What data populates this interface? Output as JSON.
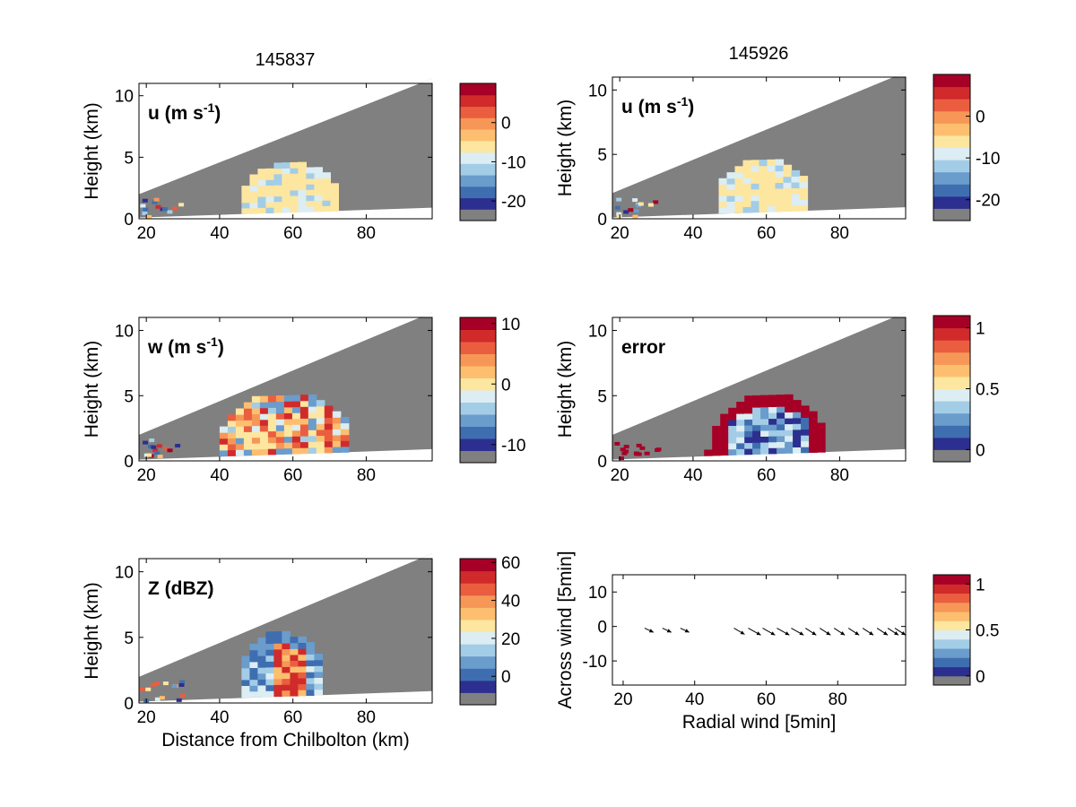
{
  "figure": {
    "columns": [
      {
        "title": "145837"
      },
      {
        "title": "145926"
      }
    ]
  },
  "colors": {
    "cmap": [
      "#2c2f8f",
      "#3f6eb0",
      "#6a9ccc",
      "#a3cde6",
      "#dcedf3",
      "#fde6a0",
      "#fdbf6f",
      "#f69757",
      "#ea5e3f",
      "#d12a2b",
      "#a60026"
    ],
    "nodata": "#808080",
    "background": "#ffffff"
  },
  "chart_data": [
    {
      "type": "heatmap",
      "panel": "u-145837",
      "label": "u (m s",
      "label_sup": "-1",
      "label_tail": ")",
      "xlabel": "",
      "ylabel": "Height (km)",
      "xlim": [
        18,
        98
      ],
      "ylim": [
        0,
        11
      ],
      "xticks": [
        "20",
        "40",
        "60",
        "80"
      ],
      "yticks": [
        "0",
        "5",
        "10"
      ],
      "echo": {
        "x_range": [
          46,
          71
        ],
        "top_km": 4.3
      },
      "colorbar": {
        "ticks": [
          "0",
          "-10",
          "-20"
        ],
        "range": [
          -25,
          10
        ]
      }
    },
    {
      "type": "heatmap",
      "panel": "u-145926",
      "label": "u (m s",
      "label_sup": "-1",
      "label_tail": ")",
      "xlabel": "",
      "ylabel": "Height (km)",
      "xlim": [
        18,
        98
      ],
      "ylim": [
        0,
        11
      ],
      "xticks": [
        "20",
        "40",
        "60",
        "80"
      ],
      "yticks": [
        "0",
        "5",
        "10"
      ],
      "echo": {
        "x_range": [
          47,
          70
        ],
        "top_km": 4.5
      },
      "colorbar": {
        "ticks": [
          "0",
          "-10",
          "-20"
        ],
        "range": [
          -25,
          10
        ]
      }
    },
    {
      "type": "heatmap",
      "panel": "w-145837",
      "label": "w (m s",
      "label_sup": "-1",
      "label_tail": ")",
      "xlabel": "",
      "ylabel": "Height (km)",
      "xlim": [
        18,
        98
      ],
      "ylim": [
        0,
        11
      ],
      "xticks": [
        "20",
        "40",
        "60",
        "80"
      ],
      "yticks": [
        "0",
        "5",
        "10"
      ],
      "echo": {
        "x_range": [
          40,
          74
        ],
        "top_km": 5.0
      },
      "colorbar": {
        "ticks": [
          "10",
          "0",
          "-10"
        ],
        "range": [
          -13,
          11
        ]
      }
    },
    {
      "type": "heatmap",
      "panel": "error-145926",
      "label": "error",
      "label_sup": "",
      "label_tail": "",
      "xlabel": "",
      "ylabel": "Height (km)",
      "xlim": [
        18,
        98
      ],
      "ylim": [
        0,
        11
      ],
      "xticks": [
        "20",
        "40",
        "60",
        "80"
      ],
      "yticks": [
        "0",
        "5",
        "10"
      ],
      "echo": {
        "x_range": [
          46,
          73
        ],
        "top_km": 5.0
      },
      "colorbar": {
        "ticks": [
          "1",
          "0.5",
          "0"
        ],
        "range": [
          -0.1,
          1.1
        ]
      }
    },
    {
      "type": "heatmap",
      "panel": "Z-145837",
      "label": "Z (dBZ)",
      "label_sup": "",
      "label_tail": "",
      "xlabel": "Distance from Chilbolton (km)",
      "ylabel": "Height (km)",
      "xlim": [
        18,
        98
      ],
      "ylim": [
        0,
        11
      ],
      "xticks": [
        "20",
        "40",
        "60",
        "80"
      ],
      "yticks": [
        "0",
        "5",
        "10"
      ],
      "echo": {
        "x_range": [
          46,
          66
        ],
        "top_km": 5.2
      },
      "colorbar": {
        "ticks": [
          "60",
          "40",
          "20",
          "0"
        ],
        "range": [
          -15,
          62
        ]
      }
    },
    {
      "type": "scatter",
      "panel": "quiver",
      "label": "",
      "xlabel": "Radial wind [5min]",
      "ylabel": "Across wind [5min]",
      "xlim": [
        17,
        99
      ],
      "ylim": [
        -17,
        15
      ],
      "xticks": [
        "20",
        "40",
        "60",
        "80"
      ],
      "yticks": [
        "10",
        "0",
        "-10"
      ],
      "arrows": [
        {
          "x": 26,
          "y": -0.5,
          "u": 2.5,
          "v": -1.2
        },
        {
          "x": 31,
          "y": -0.5,
          "u": 2.5,
          "v": -1.2
        },
        {
          "x": 36,
          "y": -0.5,
          "u": 2.5,
          "v": -1.2
        },
        {
          "x": 51,
          "y": -0.5,
          "u": 3.0,
          "v": -1.8
        },
        {
          "x": 55,
          "y": -0.5,
          "u": 3.5,
          "v": -2.0
        },
        {
          "x": 59,
          "y": -0.5,
          "u": 3.5,
          "v": -2.0
        },
        {
          "x": 63,
          "y": -0.5,
          "u": 3.5,
          "v": -2.0
        },
        {
          "x": 67,
          "y": -0.5,
          "u": 3.5,
          "v": -2.0
        },
        {
          "x": 71,
          "y": -0.5,
          "u": 3.0,
          "v": -2.0
        },
        {
          "x": 75,
          "y": -0.5,
          "u": 3.0,
          "v": -2.0
        },
        {
          "x": 79,
          "y": -0.5,
          "u": 3.0,
          "v": -2.0
        },
        {
          "x": 83,
          "y": -0.5,
          "u": 3.0,
          "v": -2.0
        },
        {
          "x": 87,
          "y": -0.5,
          "u": 3.0,
          "v": -2.0
        },
        {
          "x": 91,
          "y": -0.5,
          "u": 3.0,
          "v": -2.0
        },
        {
          "x": 94,
          "y": -0.5,
          "u": 3.0,
          "v": -2.0
        },
        {
          "x": 96,
          "y": -0.5,
          "u": 3.0,
          "v": -2.0
        }
      ],
      "colorbar": {
        "ticks": [
          "1",
          "0.5",
          "0"
        ],
        "range": [
          -0.1,
          1.1
        ]
      }
    }
  ]
}
